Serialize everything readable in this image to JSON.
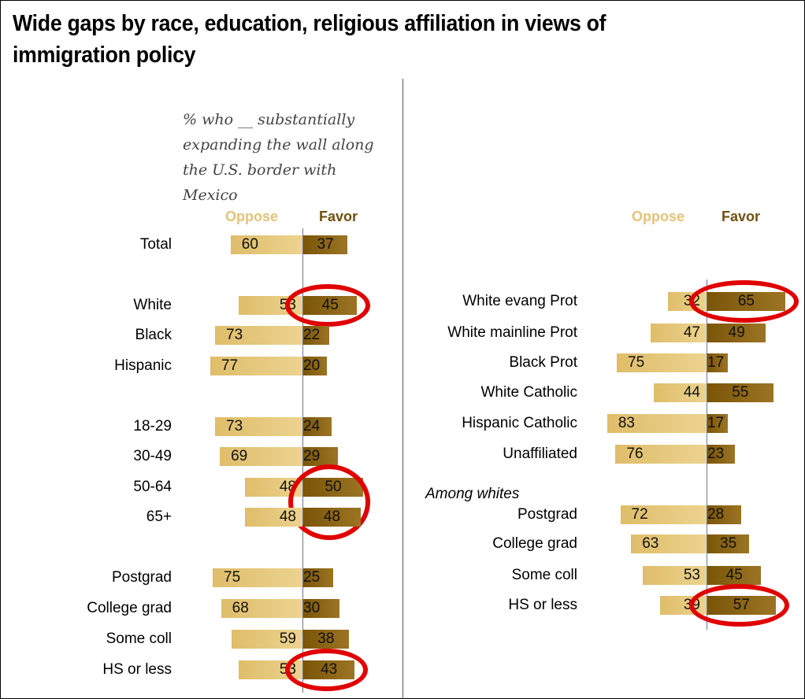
{
  "title": "Wide gaps by race, education, religious affiliation in views of immigration policy",
  "subtitle": "% who __ substantially expanding the wall along the U.S. border with Mexico",
  "colors": {
    "oppose": "#e3c27a",
    "favor": "#7a5508",
    "highlight": "#e00000"
  },
  "chart_data": [
    {
      "type": "bar",
      "orientation": "diverging-horizontal",
      "panel": "left",
      "legend": [
        "Oppose",
        "Favor"
      ],
      "groups": [
        {
          "label": "Total",
          "oppose": 60,
          "favor": 37,
          "highlight": false
        },
        {
          "label": "White",
          "oppose": 53,
          "favor": 45,
          "highlight": true
        },
        {
          "label": "Black",
          "oppose": 73,
          "favor": 22,
          "highlight": false
        },
        {
          "label": "Hispanic",
          "oppose": 77,
          "favor": 20,
          "highlight": false
        },
        {
          "label": "18-29",
          "oppose": 73,
          "favor": 24,
          "highlight": false
        },
        {
          "label": "30-49",
          "oppose": 69,
          "favor": 29,
          "highlight": false
        },
        {
          "label": "50-64",
          "oppose": 48,
          "favor": 50,
          "highlight": true
        },
        {
          "label": "65+",
          "oppose": 48,
          "favor": 48,
          "highlight": true
        },
        {
          "label": "Postgrad",
          "oppose": 75,
          "favor": 25,
          "highlight": false
        },
        {
          "label": "College grad",
          "oppose": 68,
          "favor": 30,
          "highlight": false
        },
        {
          "label": "Some coll",
          "oppose": 59,
          "favor": 38,
          "highlight": false
        },
        {
          "label": "HS or less",
          "oppose": 53,
          "favor": 43,
          "highlight": true
        }
      ]
    },
    {
      "type": "bar",
      "orientation": "diverging-horizontal",
      "panel": "right",
      "legend": [
        "Oppose",
        "Favor"
      ],
      "section_label": "Among whites",
      "groups": [
        {
          "label": "White evang Prot",
          "oppose": 32,
          "favor": 65,
          "highlight": true
        },
        {
          "label": "White mainline Prot",
          "oppose": 47,
          "favor": 49,
          "highlight": false
        },
        {
          "label": "Black Prot",
          "oppose": 75,
          "favor": 17,
          "highlight": false
        },
        {
          "label": "White Catholic",
          "oppose": 44,
          "favor": 55,
          "highlight": false
        },
        {
          "label": "Hispanic Catholic",
          "oppose": 83,
          "favor": 17,
          "highlight": false
        },
        {
          "label": "Unaffiliated",
          "oppose": 76,
          "favor": 23,
          "highlight": false
        },
        {
          "label": "Postgrad",
          "oppose": 72,
          "favor": 28,
          "highlight": false
        },
        {
          "label": "College grad",
          "oppose": 63,
          "favor": 35,
          "highlight": false
        },
        {
          "label": "Some coll",
          "oppose": 53,
          "favor": 45,
          "highlight": false
        },
        {
          "label": "HS or less",
          "oppose": 39,
          "favor": 57,
          "highlight": true
        }
      ]
    }
  ]
}
